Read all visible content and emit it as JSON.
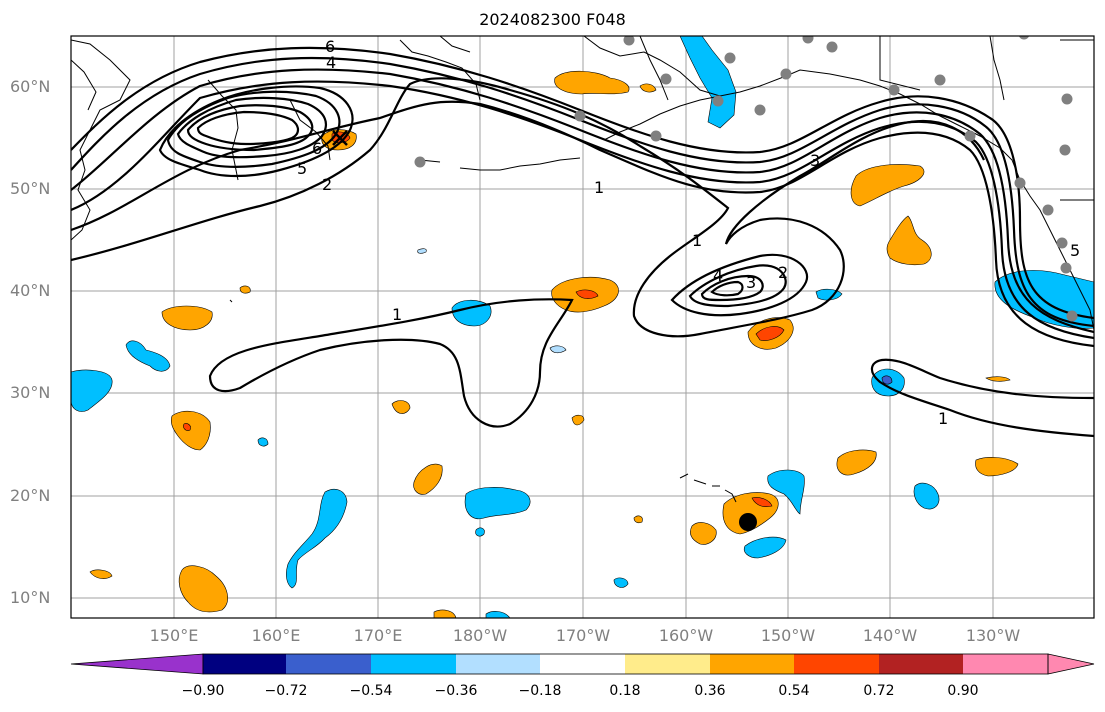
{
  "title": "2024082300 F048",
  "lat_labels": [
    "60°N",
    "50°N",
    "40°N",
    "30°N",
    "20°N",
    "10°N"
  ],
  "lon_labels": [
    "150°E",
    "160°E",
    "170°E",
    "180°W",
    "170°W",
    "160°W",
    "150°W",
    "140°W",
    "130°W"
  ],
  "colorbar": {
    "tick_labels": [
      "−0.90",
      "−0.72",
      "−0.54",
      "−0.36",
      "−0.18",
      "0.18",
      "0.36",
      "0.54",
      "0.72",
      "0.90"
    ],
    "colors": [
      "#9932cc",
      "#000080",
      "#3a5fcd",
      "#00bfff",
      "#b2dfff",
      "#ffffff",
      "#ffec8b",
      "#ffa500",
      "#ff4500",
      "#b22222",
      "#ff88b0"
    ]
  },
  "contour_labels": [
    "6",
    "4",
    "6",
    "5",
    "2",
    "1",
    "1",
    "4",
    "3",
    "2",
    "1",
    "3",
    "1",
    "5"
  ],
  "colors": {
    "land_outline": "#000000",
    "grid": "#a0a0a0",
    "station_marker": "#808080",
    "storm_marker": "#000000"
  }
}
